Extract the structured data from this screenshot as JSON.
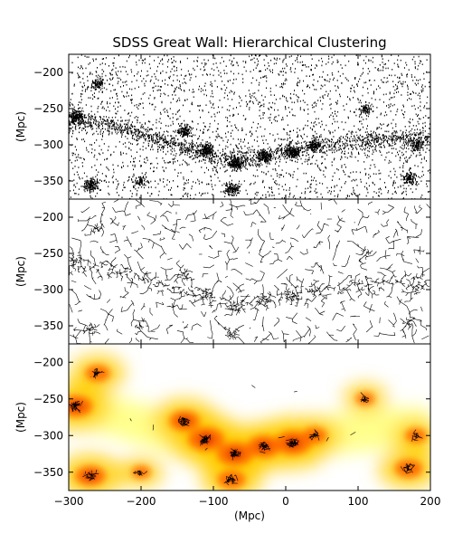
{
  "chart_data": {
    "type": "scatter",
    "title": "SDSS Great Wall: Hierarchical Clustering",
    "xlabel": "(Mpc)",
    "xlim": [
      -300,
      200
    ],
    "x_ticks": [
      "−300",
      "−200",
      "−100",
      "0",
      "100",
      "200"
    ],
    "x_tick_values": [
      -300,
      -200,
      -100,
      0,
      100,
      200
    ],
    "panels": [
      {
        "name": "points",
        "ylabel": "(Mpc)",
        "ylim": [
          -375,
          -175
        ],
        "y_ticks": [
          "−200",
          "−250",
          "−300",
          "−350"
        ],
        "y_tick_values": [
          -200,
          -250,
          -300,
          -350
        ],
        "style": "scatter"
      },
      {
        "name": "tree",
        "ylabel": "(Mpc)",
        "ylim": [
          -375,
          -175
        ],
        "y_ticks": [
          "−200",
          "−250",
          "−300",
          "−350"
        ],
        "y_tick_values": [
          -200,
          -250,
          -300,
          -350
        ],
        "style": "minimum-spanning-tree"
      },
      {
        "name": "clusters",
        "ylabel": "(Mpc)",
        "ylim": [
          -375,
          -175
        ],
        "y_ticks": [
          "−200",
          "−250",
          "−300",
          "−350"
        ],
        "y_tick_values": [
          -200,
          -250,
          -300,
          -350
        ],
        "style": "density-clusters",
        "colormap": [
          "#ffffff",
          "#ffff80",
          "#ffcc00",
          "#ff6600",
          "#cc0000",
          "#660000"
        ]
      }
    ],
    "structures": [
      {
        "x": -290,
        "y": -260,
        "strength": 0.9
      },
      {
        "x": -260,
        "y": -215,
        "strength": 0.6
      },
      {
        "x": -140,
        "y": -280,
        "strength": 0.8
      },
      {
        "x": -110,
        "y": -305,
        "strength": 1.0
      },
      {
        "x": -70,
        "y": -325,
        "strength": 1.0
      },
      {
        "x": -30,
        "y": -315,
        "strength": 0.9
      },
      {
        "x": 10,
        "y": -310,
        "strength": 1.0
      },
      {
        "x": 40,
        "y": -300,
        "strength": 0.6
      },
      {
        "x": -270,
        "y": -355,
        "strength": 0.8
      },
      {
        "x": -75,
        "y": -360,
        "strength": 0.7
      },
      {
        "x": 170,
        "y": -345,
        "strength": 0.7
      },
      {
        "x": 180,
        "y": -300,
        "strength": 0.5
      },
      {
        "x": 110,
        "y": -250,
        "strength": 0.4
      },
      {
        "x": -200,
        "y": -350,
        "strength": 0.4
      }
    ],
    "wall_path": [
      [
        -300,
        -265
      ],
      [
        -250,
        -270
      ],
      [
        -200,
        -285
      ],
      [
        -150,
        -300
      ],
      [
        -100,
        -315
      ],
      [
        -50,
        -320
      ],
      [
        0,
        -305
      ],
      [
        50,
        -300
      ],
      [
        100,
        -295
      ],
      [
        150,
        -290
      ],
      [
        200,
        -290
      ]
    ]
  }
}
